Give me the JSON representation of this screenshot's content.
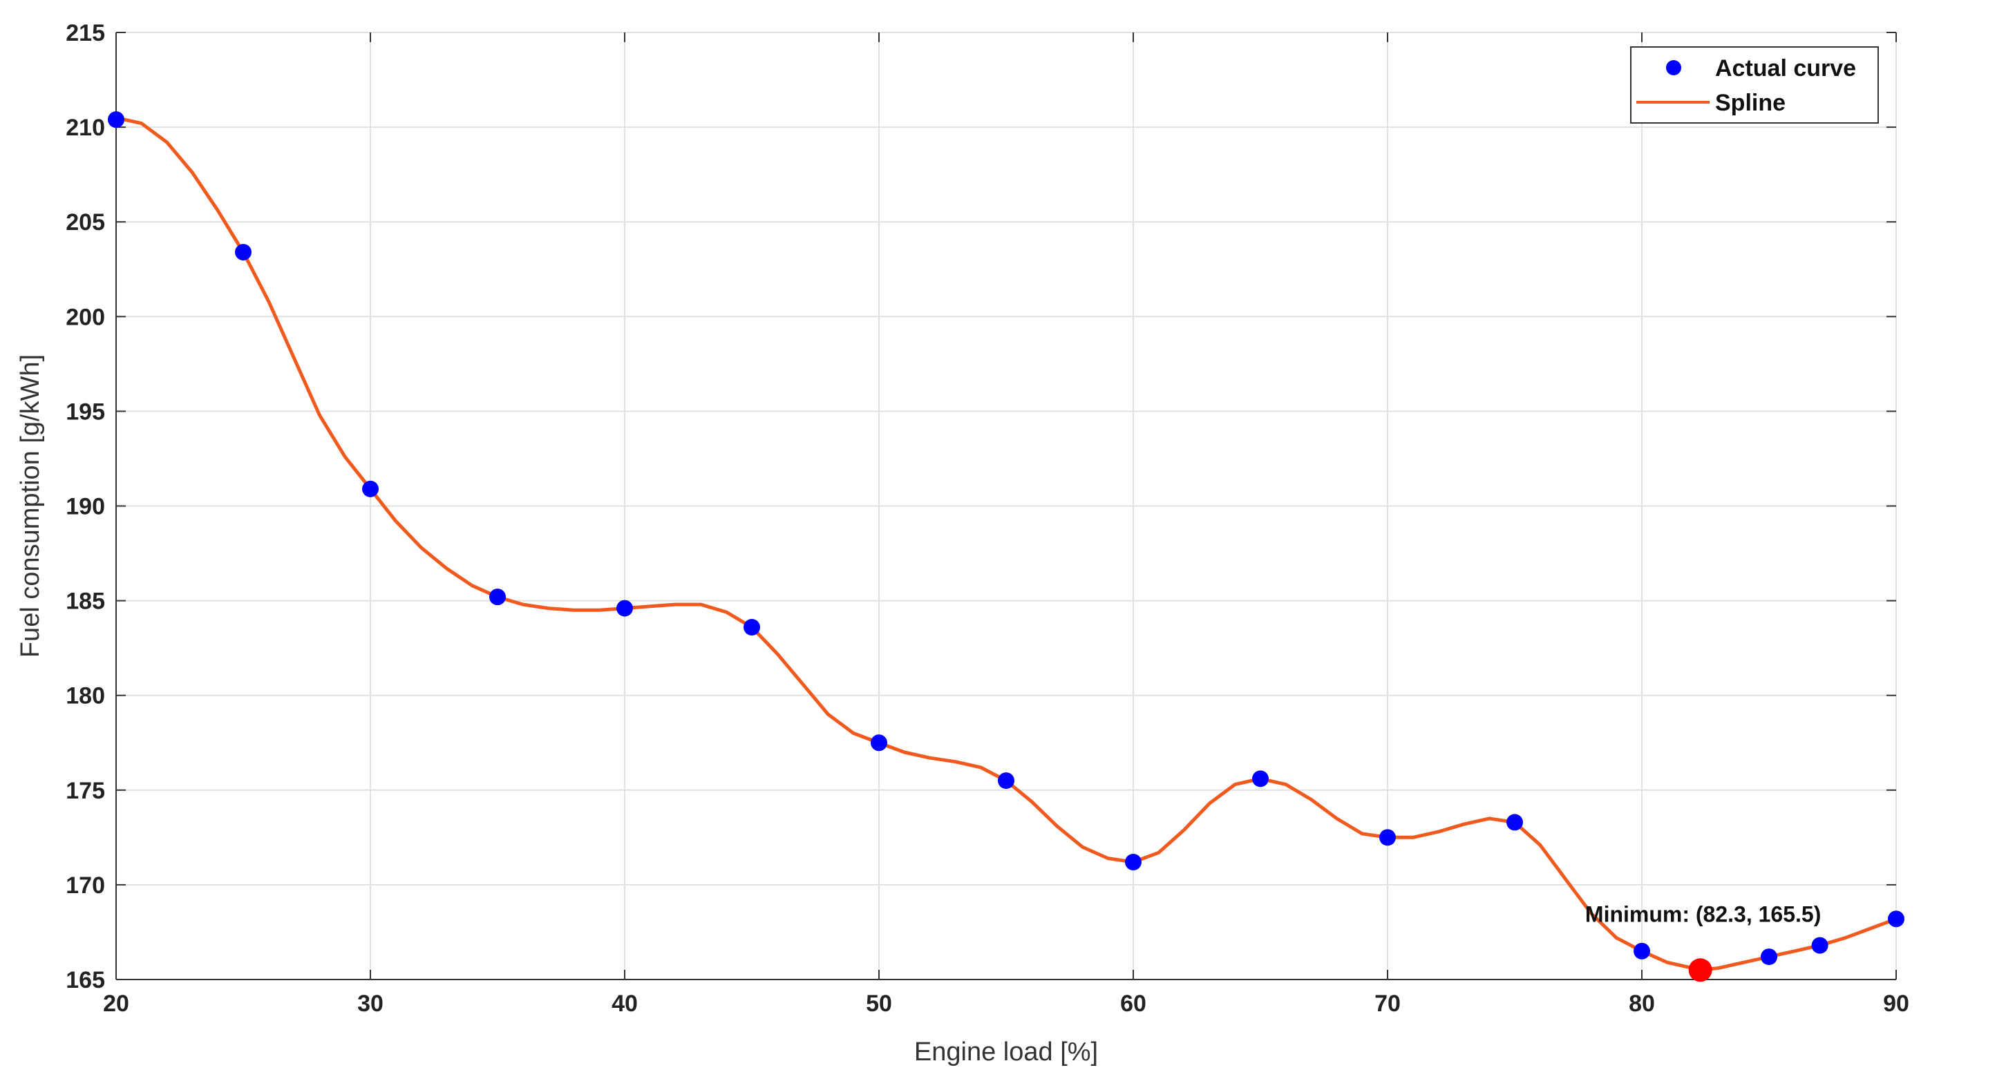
{
  "chart_data": {
    "type": "line",
    "xlabel": "Engine load [%]",
    "ylabel": "Fuel consumption [g/kWh]",
    "xlim": [
      20,
      90
    ],
    "ylim": [
      165,
      215
    ],
    "xticks": [
      20,
      30,
      40,
      50,
      60,
      70,
      80,
      90
    ],
    "yticks": [
      165,
      170,
      175,
      180,
      185,
      190,
      195,
      200,
      205,
      210,
      215
    ],
    "grid": true,
    "legend_position": "top-right",
    "series": [
      {
        "name": "Actual curve",
        "kind": "scatter",
        "color": "#0000ff",
        "x": [
          20,
          25,
          30,
          35,
          40,
          45,
          50,
          55,
          60,
          65,
          70,
          75,
          80,
          85,
          87,
          90
        ],
        "y": [
          210.4,
          203.4,
          190.9,
          185.2,
          184.6,
          183.6,
          177.5,
          175.5,
          171.2,
          175.6,
          172.5,
          173.3,
          166.5,
          166.2,
          166.8,
          168.2
        ]
      },
      {
        "name": "Spline",
        "kind": "line",
        "color": "#f05a1e",
        "x": [
          20,
          21,
          22,
          23,
          24,
          25,
          26,
          27,
          28,
          29,
          30,
          31,
          32,
          33,
          34,
          35,
          36,
          37,
          38,
          39,
          40,
          41,
          42,
          43,
          44,
          45,
          46,
          47,
          48,
          49,
          50,
          51,
          52,
          53,
          54,
          55,
          56,
          57,
          58,
          59,
          60,
          61,
          62,
          63,
          64,
          65,
          66,
          67,
          68,
          69,
          70,
          71,
          72,
          73,
          74,
          75,
          76,
          77,
          78,
          79,
          80,
          81,
          82,
          82.3,
          83,
          84,
          85,
          86,
          87,
          88,
          89,
          90
        ],
        "y": [
          210.5,
          210.2,
          209.2,
          207.6,
          205.6,
          203.4,
          200.8,
          197.8,
          194.8,
          192.6,
          190.9,
          189.2,
          187.8,
          186.7,
          185.8,
          185.2,
          184.8,
          184.6,
          184.5,
          184.5,
          184.6,
          184.7,
          184.8,
          184.8,
          184.4,
          183.6,
          182.2,
          180.6,
          179.0,
          178.0,
          177.5,
          177.0,
          176.7,
          176.5,
          176.2,
          175.5,
          174.4,
          173.1,
          172.0,
          171.4,
          171.2,
          171.7,
          172.9,
          174.3,
          175.3,
          175.6,
          175.3,
          174.5,
          173.5,
          172.7,
          172.5,
          172.5,
          172.8,
          173.2,
          173.5,
          173.3,
          172.1,
          170.3,
          168.5,
          167.2,
          166.5,
          165.9,
          165.6,
          165.5,
          165.6,
          165.9,
          166.2,
          166.5,
          166.8,
          167.2,
          167.7,
          168.2
        ]
      }
    ],
    "minimum_point": {
      "x": 82.3,
      "y": 165.5,
      "color": "#ff0000"
    },
    "annotation": "Minimum: (82.3, 165.5)"
  }
}
